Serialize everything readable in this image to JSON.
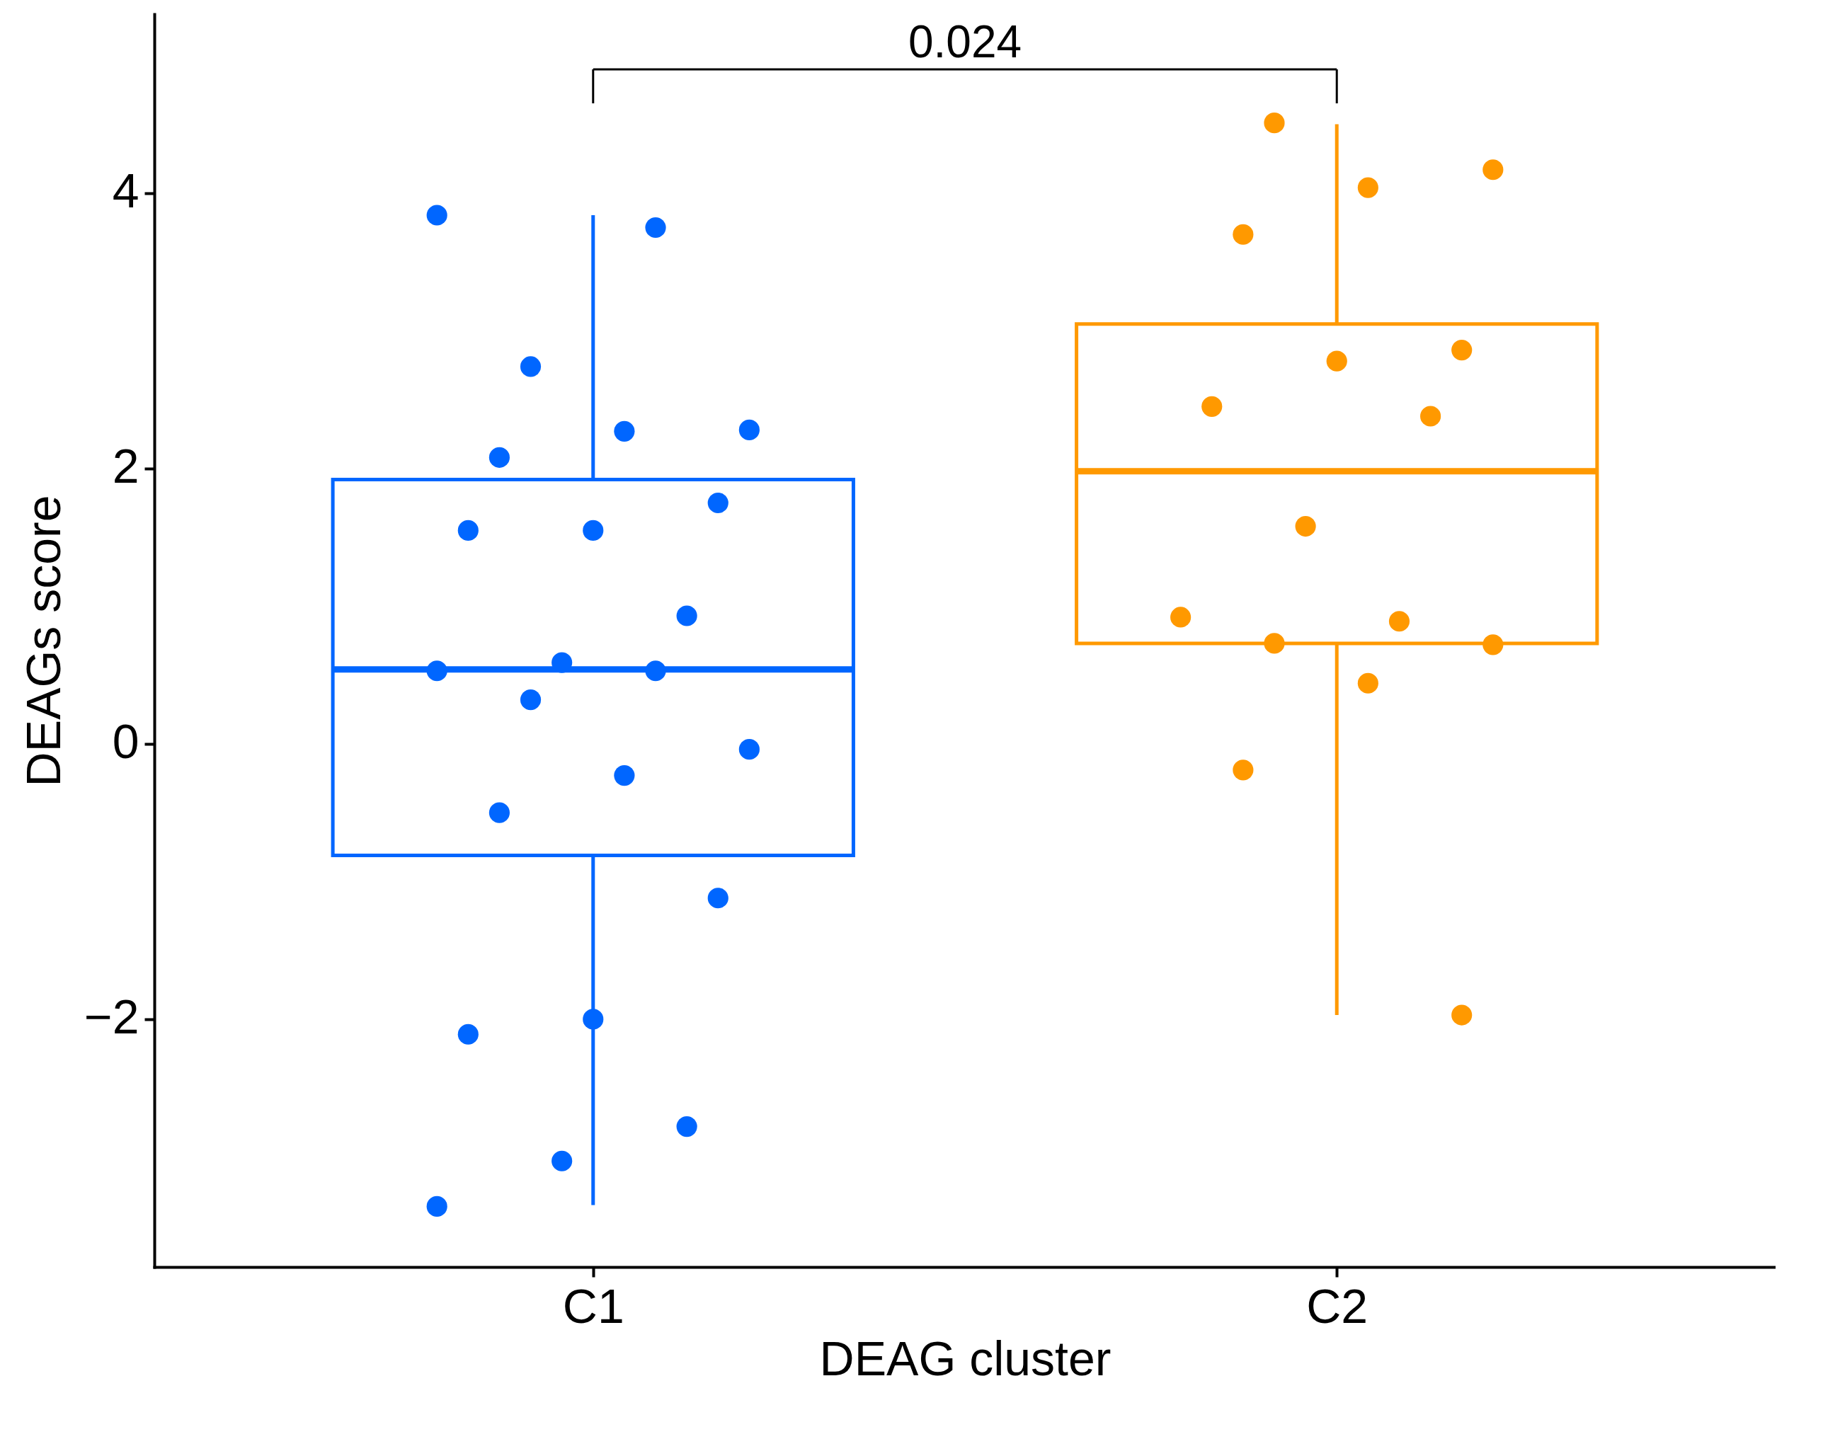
{
  "chart_data": {
    "type": "box",
    "xlabel": "DEAG cluster",
    "ylabel": "DEAGs score",
    "categories": [
      "C1",
      "C2"
    ],
    "colors": [
      "#0066ff",
      "#ff9900"
    ],
    "boxes": [
      {
        "low": -3.35,
        "q1": -0.81,
        "median": 0.54,
        "q3": 1.92,
        "high": 3.84
      },
      {
        "low": -1.97,
        "q1": 0.73,
        "median": 1.98,
        "q3": 3.05,
        "high": 4.5
      }
    ],
    "series": [
      {
        "type": "scatter",
        "color": "#0066ff",
        "x": [
          "C1",
          "C1",
          "C1",
          "C1",
          "C1",
          "C1",
          "C1",
          "C1",
          "C1",
          "C1",
          "C1",
          "C1",
          "C1",
          "C1",
          "C1",
          "C1",
          "C1",
          "C1",
          "C1",
          "C1",
          "C1",
          "C1",
          "C1"
        ],
        "values": [
          3.84,
          3.75,
          2.74,
          2.28,
          2.27,
          2.08,
          1.75,
          1.55,
          1.55,
          0.93,
          0.59,
          0.53,
          0.53,
          0.32,
          -0.04,
          -0.23,
          -0.5,
          -1.12,
          -2.0,
          -2.11,
          -2.78,
          -3.03,
          -3.36
        ]
      },
      {
        "type": "scatter",
        "color": "#ff9900",
        "x": [
          "C2",
          "C2",
          "C2",
          "C2",
          "C2",
          "C2",
          "C2",
          "C2",
          "C2",
          "C2",
          "C2",
          "C2",
          "C2",
          "C2",
          "C2",
          "C2"
        ],
        "values": [
          4.51,
          4.17,
          4.04,
          3.7,
          2.86,
          2.78,
          2.45,
          2.38,
          1.58,
          0.92,
          0.89,
          0.73,
          0.72,
          0.44,
          -0.19,
          -1.97
        ]
      }
    ],
    "ylim": [
      -3.8,
      5.3
    ],
    "yticks": [
      -2,
      0,
      2,
      4
    ],
    "grid": false,
    "legend": false,
    "marker": "circle",
    "annotations": [
      "0.024"
    ]
  }
}
